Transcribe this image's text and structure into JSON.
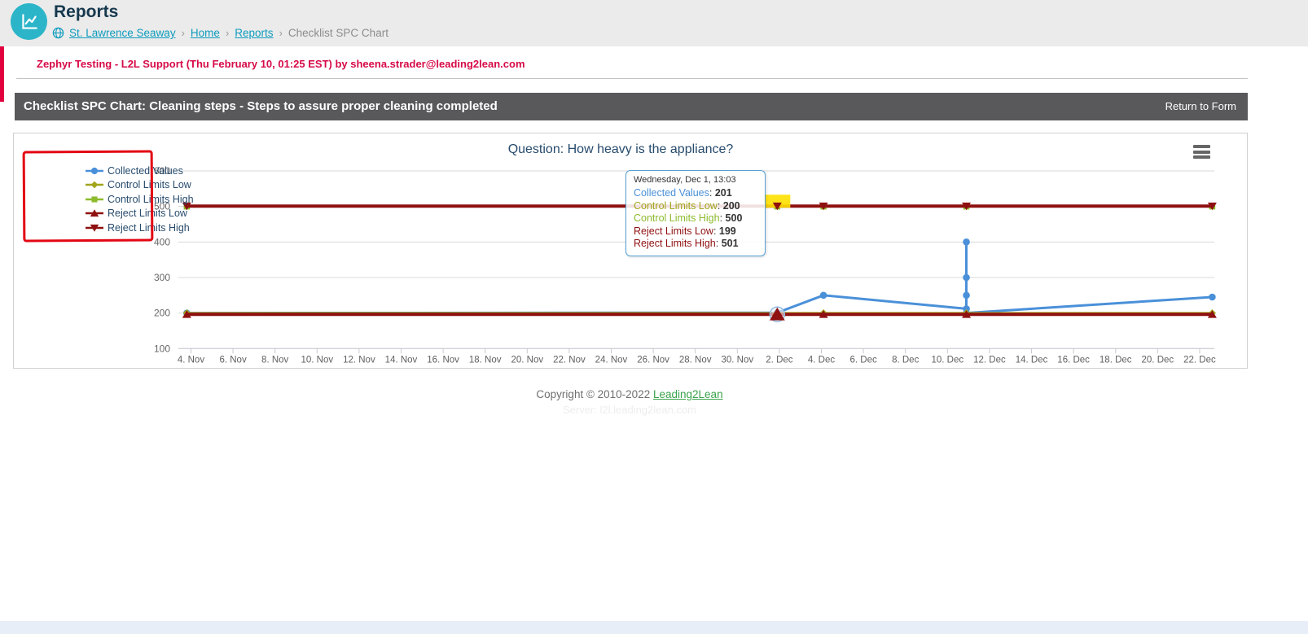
{
  "header": {
    "title": "Reports",
    "breadcrumb": {
      "site": "St. Lawrence Seaway",
      "items": [
        "Home",
        "Reports"
      ],
      "current": "Checklist SPC Chart",
      "separator": "›"
    }
  },
  "alert": {
    "text": "Zephyr Testing - L2L Support (Thu February 10, 01:25 EST) by sheena.strader@leading2lean.com"
  },
  "titlebar": {
    "title": "Checklist SPC Chart: Cleaning steps - Steps to assure proper cleaning completed",
    "action": "Return to Form"
  },
  "chart_data": {
    "type": "line",
    "title": "Question: How heavy is the appliance?",
    "x_unit": "days since Nov 4",
    "axis": {
      "day_min": -0.6,
      "day_max": 48.7
    },
    "ylim": [
      100,
      600
    ],
    "y_ticks": [
      100,
      200,
      300,
      400,
      500,
      600
    ],
    "x_ticks": [
      {
        "day": 0,
        "label": "4. Nov"
      },
      {
        "day": 2,
        "label": "6. Nov"
      },
      {
        "day": 4,
        "label": "8. Nov"
      },
      {
        "day": 6,
        "label": "10. Nov"
      },
      {
        "day": 8,
        "label": "12. Nov"
      },
      {
        "day": 10,
        "label": "14. Nov"
      },
      {
        "day": 12,
        "label": "16. Nov"
      },
      {
        "day": 14,
        "label": "18. Nov"
      },
      {
        "day": 16,
        "label": "20. Nov"
      },
      {
        "day": 18,
        "label": "22. Nov"
      },
      {
        "day": 20,
        "label": "24. Nov"
      },
      {
        "day": 22,
        "label": "26. Nov"
      },
      {
        "day": 24,
        "label": "28. Nov"
      },
      {
        "day": 26,
        "label": "30. Nov"
      },
      {
        "day": 28,
        "label": "2. Dec"
      },
      {
        "day": 30,
        "label": "4. Dec"
      },
      {
        "day": 32,
        "label": "6. Dec"
      },
      {
        "day": 34,
        "label": "8. Dec"
      },
      {
        "day": 36,
        "label": "10. Dec"
      },
      {
        "day": 38,
        "label": "12. Dec"
      },
      {
        "day": 40,
        "label": "14. Dec"
      },
      {
        "day": 42,
        "label": "16. Dec"
      },
      {
        "day": 44,
        "label": "18. Dec"
      },
      {
        "day": 46,
        "label": "20. Dec"
      },
      {
        "day": 48,
        "label": "22. Dec"
      }
    ],
    "series": [
      {
        "name": "Collected Values",
        "color": "#4a90d9",
        "marker": "circle",
        "width": 3,
        "points": [
          [
            -0.2,
            200
          ],
          [
            27.9,
            201
          ],
          [
            30.1,
            250
          ],
          [
            36.9,
            212
          ],
          [
            36.9,
            400
          ],
          [
            36.9,
            300
          ],
          [
            36.9,
            250
          ],
          [
            36.9,
            200
          ],
          [
            48.6,
            245
          ]
        ]
      },
      {
        "name": "Control Limits Low",
        "color": "#a2a51c",
        "marker": "diamond",
        "width": 2.5,
        "points": [
          [
            -0.2,
            200
          ],
          [
            27.9,
            200
          ],
          [
            30.1,
            200
          ],
          [
            36.9,
            200
          ],
          [
            48.6,
            200
          ]
        ]
      },
      {
        "name": "Control Limits High",
        "color": "#8dbb2d",
        "marker": "square",
        "width": 2.5,
        "points": [
          [
            -0.2,
            500
          ],
          [
            27.9,
            500
          ],
          [
            30.1,
            500
          ],
          [
            36.9,
            500
          ],
          [
            48.6,
            500
          ]
        ]
      },
      {
        "name": "Reject Limits Low",
        "color": "#8f1010",
        "marker": "triangle-up",
        "width": 4,
        "nudge": 1.2,
        "points": [
          [
            -0.2,
            199
          ],
          [
            27.9,
            199
          ],
          [
            30.1,
            199
          ],
          [
            36.9,
            199
          ],
          [
            48.6,
            199
          ]
        ]
      },
      {
        "name": "Reject Limits High",
        "color": "#8f1010",
        "marker": "triangle-down",
        "width": 4,
        "points": [
          [
            -0.2,
            501
          ],
          [
            27.9,
            501
          ],
          [
            30.1,
            501
          ],
          [
            36.9,
            501
          ],
          [
            48.6,
            501
          ]
        ]
      }
    ],
    "highlight": {
      "series": "Reject Limits High",
      "day": 27.9,
      "value": 501,
      "color": "#ffe000"
    },
    "hover_marker": {
      "series": "Reject Limits Low",
      "day": 27.9,
      "value": 199
    }
  },
  "tooltip": {
    "header": "Wednesday, Dec 1, 13:03",
    "rows": [
      {
        "label": "Collected Values",
        "value": "201",
        "color": "#4a90d9"
      },
      {
        "label": "Control Limits Low",
        "value": "200",
        "color": "#a2a51c"
      },
      {
        "label": "Control Limits High",
        "value": "500",
        "color": "#8dbb2d"
      },
      {
        "label": "Reject Limits Low",
        "value": "199",
        "color": "#8f1010"
      },
      {
        "label": "Reject Limits High",
        "value": "501",
        "color": "#8f1010"
      }
    ]
  },
  "footer": {
    "copyright": "Copyright © 2010-2022",
    "link": "Leading2Lean",
    "server": "Server: l2l.leading2lean.com"
  }
}
